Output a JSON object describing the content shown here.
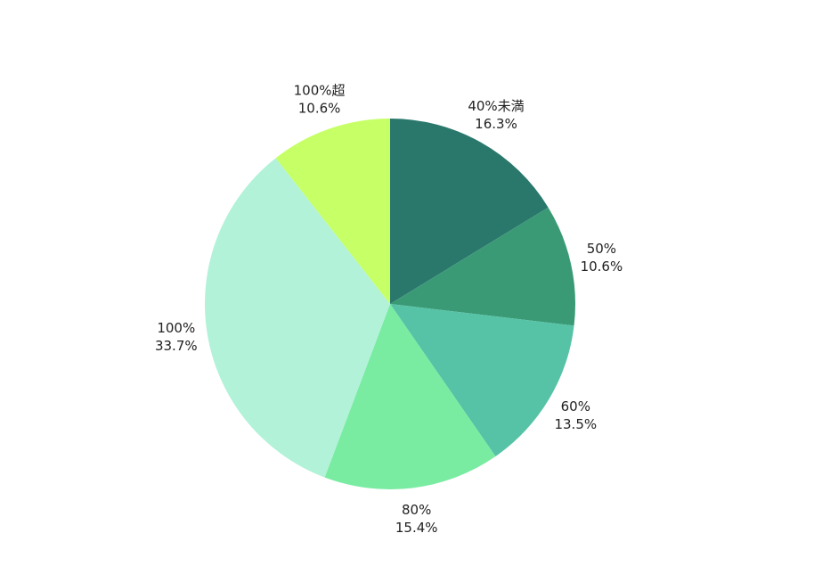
{
  "chart_data": {
    "type": "pie",
    "title": "",
    "start_angle_deg": 0,
    "direction": "clockwise",
    "slices": [
      {
        "label": "40%未満",
        "value": 16.3,
        "value_label": "16.3%",
        "color": "#2a786c"
      },
      {
        "label": "50%",
        "value": 10.6,
        "value_label": "10.6%",
        "color": "#3b9a76"
      },
      {
        "label": "60%",
        "value": 13.5,
        "value_label": "13.5%",
        "color": "#56c3a6"
      },
      {
        "label": "80%",
        "value": 15.4,
        "value_label": "15.4%",
        "color": "#79eca2"
      },
      {
        "label": "100%",
        "value": 33.7,
        "value_label": "33.7%",
        "color": "#b2f2d9"
      },
      {
        "label": "100%超",
        "value": 10.6,
        "value_label": "10.6%",
        "color": "#c6ff66"
      }
    ]
  }
}
